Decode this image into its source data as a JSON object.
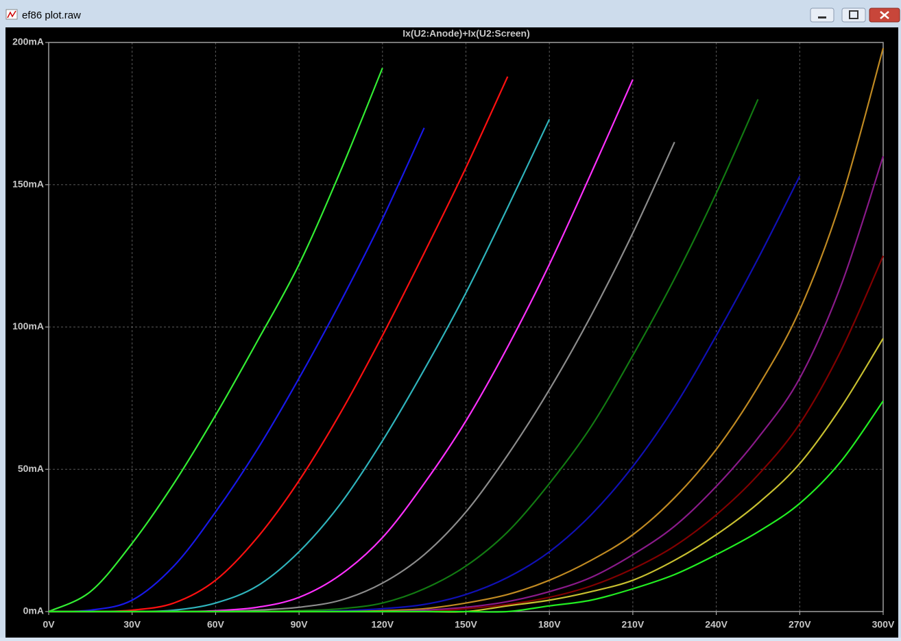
{
  "window": {
    "title": "ef86 plot.raw"
  },
  "chart_data": {
    "type": "line",
    "title": "Ix(U2:Anode)+Ix(U2:Screen)",
    "title_color": "#33ff33",
    "x": [
      0,
      15,
      30,
      45,
      60,
      75,
      90,
      105,
      120,
      135,
      150,
      165,
      180,
      195,
      210,
      225,
      240,
      255,
      270,
      285,
      300
    ],
    "xlim": [
      0,
      300
    ],
    "xticks": [
      {
        "value": 0,
        "label": "0V"
      },
      {
        "value": 30,
        "label": "30V"
      },
      {
        "value": 60,
        "label": "60V"
      },
      {
        "value": 90,
        "label": "90V"
      },
      {
        "value": 120,
        "label": "120V"
      },
      {
        "value": 150,
        "label": "150V"
      },
      {
        "value": 180,
        "label": "180V"
      },
      {
        "value": 210,
        "label": "210V"
      },
      {
        "value": 240,
        "label": "240V"
      },
      {
        "value": 270,
        "label": "270V"
      },
      {
        "value": 300,
        "label": "300V"
      }
    ],
    "ylim": [
      0,
      200
    ],
    "yticks": [
      {
        "value": 0,
        "label": "0mA"
      },
      {
        "value": 50,
        "label": "50mA"
      },
      {
        "value": 100,
        "label": "100mA"
      },
      {
        "value": 150,
        "label": "150mA"
      },
      {
        "value": 200,
        "label": "200mA"
      }
    ],
    "grid": true,
    "series": [
      {
        "color": "#33ee33",
        "values": [
          0,
          7,
          24,
          45,
          69,
          95,
          122,
          155,
          191,
          null,
          null,
          null,
          null,
          null,
          null,
          null,
          null,
          null,
          null,
          null,
          null
        ]
      },
      {
        "color": "#1818e8",
        "values": [
          0,
          0.5,
          4,
          16,
          35,
          57,
          82,
          109,
          138,
          170,
          null,
          null,
          null,
          null,
          null,
          null,
          null,
          null,
          null,
          null,
          null
        ]
      },
      {
        "color": "#ff1010",
        "values": [
          0,
          0,
          0.5,
          3,
          11,
          26,
          46,
          70,
          97,
          126,
          156,
          188,
          null,
          null,
          null,
          null,
          null,
          null,
          null,
          null,
          null
        ]
      },
      {
        "color": "#2fb4bc",
        "values": [
          0,
          0,
          0,
          0.5,
          3,
          9,
          21,
          38,
          60,
          85,
          112,
          142,
          173,
          null,
          null,
          null,
          null,
          null,
          null,
          null,
          null
        ]
      },
      {
        "color": "#ff30ff",
        "values": [
          0,
          0,
          0,
          0,
          0.3,
          1.5,
          5,
          13,
          26,
          45,
          67,
          93,
          122,
          154,
          187,
          null,
          null,
          null,
          null,
          null,
          null
        ]
      },
      {
        "color": "#8c8c8c",
        "values": [
          0,
          0,
          0,
          0,
          0,
          0.5,
          1.5,
          4,
          10,
          20,
          35,
          55,
          78,
          104,
          133,
          165,
          null,
          null,
          null,
          null,
          null
        ]
      },
      {
        "color": "#127a12",
        "values": [
          0,
          0,
          0,
          0,
          0,
          0,
          0.3,
          1,
          3,
          8,
          16,
          28,
          45,
          65,
          90,
          117,
          147,
          180,
          null,
          null,
          null
        ]
      },
      {
        "color": "#1010b4",
        "values": [
          0,
          0,
          0,
          0,
          0,
          0,
          0,
          0.3,
          1,
          2.5,
          6,
          12,
          21,
          34,
          51,
          72,
          97,
          124,
          153,
          null,
          null
        ]
      },
      {
        "color": "#c08a22",
        "values": [
          0,
          0,
          0,
          0,
          0,
          0,
          0,
          0,
          0.3,
          1,
          3,
          6,
          11,
          18,
          27,
          40,
          57,
          79,
          106,
          145,
          198
        ]
      },
      {
        "color": "#8a1a8a",
        "values": [
          0,
          0,
          0,
          0,
          0,
          0,
          0,
          0,
          0,
          0.5,
          1.5,
          3.5,
          7,
          12,
          20,
          30,
          44,
          61,
          82,
          115,
          160
        ]
      },
      {
        "color": "#820000",
        "values": [
          0,
          0,
          0,
          0,
          0,
          0,
          0,
          0,
          0,
          0,
          1,
          2.5,
          5,
          9,
          15,
          23,
          34,
          48,
          66,
          92,
          125
        ]
      },
      {
        "color": "#c8c030",
        "values": [
          0,
          0,
          0,
          0,
          0,
          0,
          0,
          0,
          0,
          0,
          0,
          2,
          4,
          7,
          11,
          18,
          27,
          38,
          52,
          72,
          96
        ]
      },
      {
        "color": "#22ee22",
        "values": [
          0,
          0,
          0,
          0,
          0,
          0,
          0,
          0,
          0,
          0,
          0,
          0,
          2,
          4,
          8,
          13,
          20,
          28,
          38,
          53,
          74
        ]
      }
    ]
  }
}
